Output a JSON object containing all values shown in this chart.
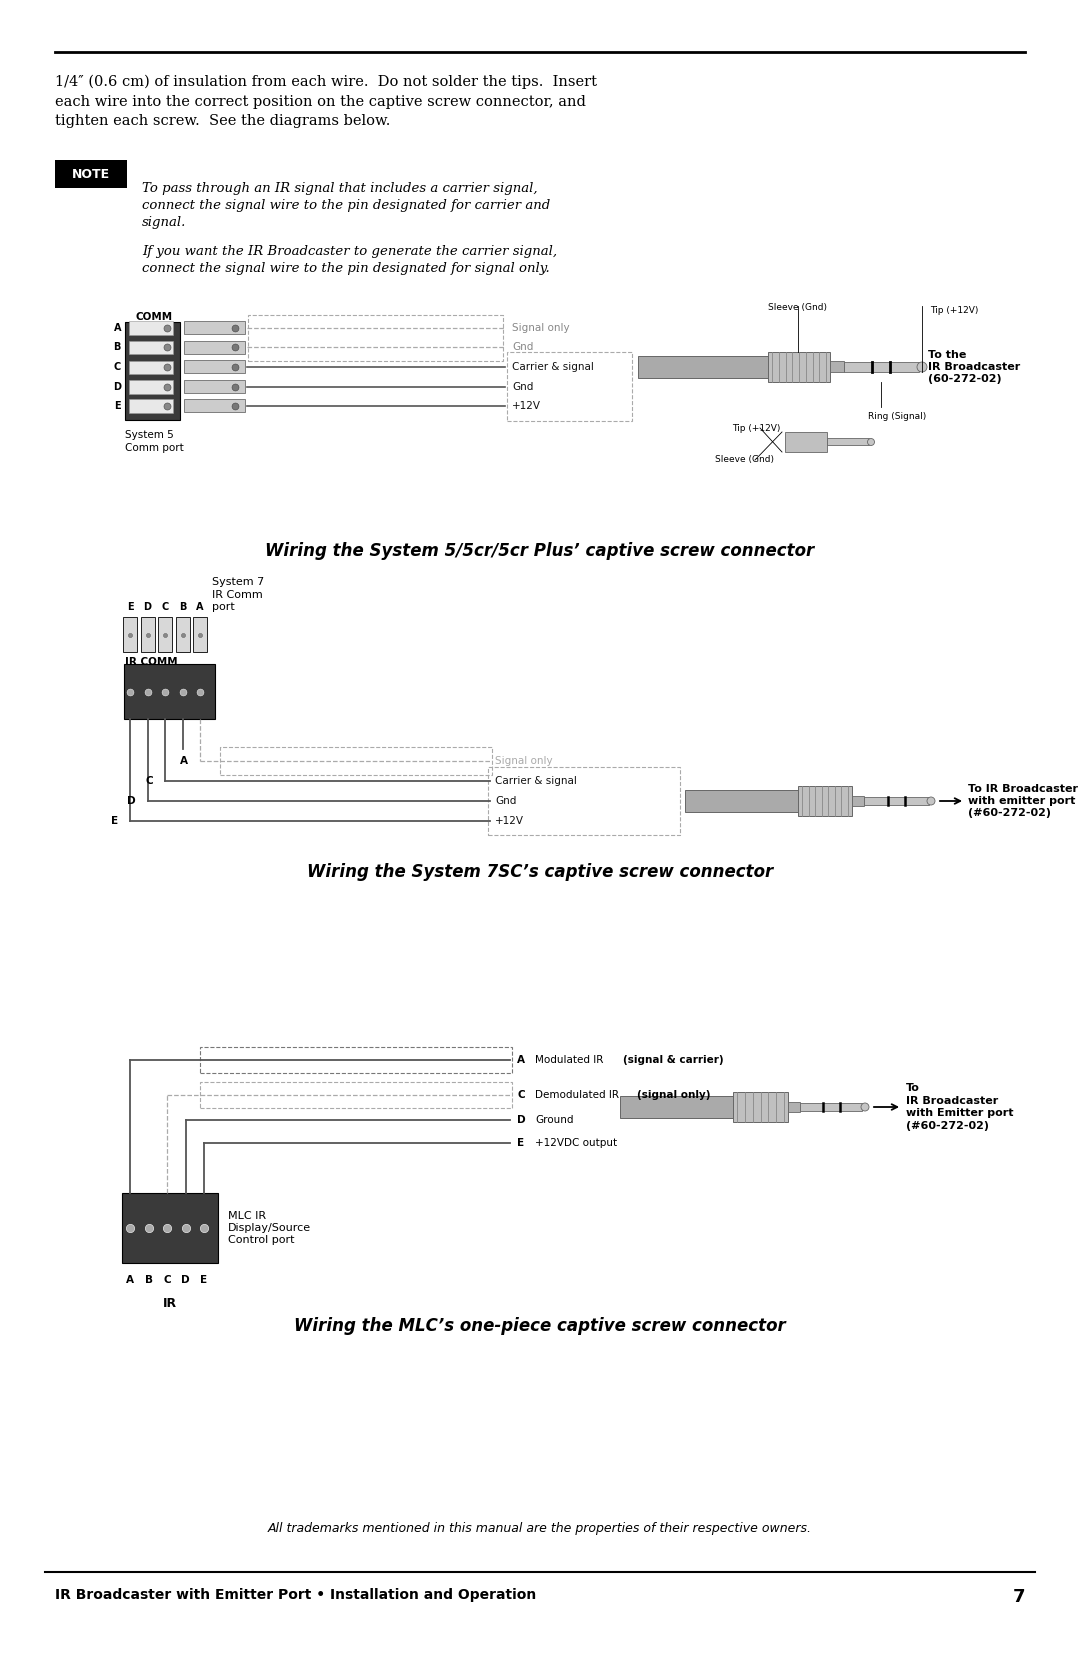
{
  "bg_color": "#ffffff",
  "text_color": "#000000",
  "page_width": 10.8,
  "page_height": 16.69,
  "paragraph_text": "1/4″ (0.6 cm) of insulation from each wire.  Do not solder the tips.  Insert each wire into the correct position on the captive screw connector, and tighten each screw.  See the diagrams below.",
  "note_label": "NOTE",
  "note_text_1": "To pass through an IR signal that includes a carrier signal,\nconnect the signal wire to the pin designated for carrier and\nsignal.",
  "note_text_2": "If you want the IR Broadcaster to generate the carrier signal,\nconnect the signal wire to the pin designated for signal only.",
  "caption1": "Wiring the System 5/5cr/5cr Plus’ captive screw connector",
  "caption2": "Wiring the System 7SC’s captive screw connector",
  "caption3": "Wiring the MLC’s one-piece captive screw connector",
  "footer_text": "All trademarks mentioned in this manual are the properties of their respective owners.",
  "footer_bottom_left": "IR Broadcaster with Emitter Port • Installation and Operation",
  "footer_bottom_right": "7"
}
